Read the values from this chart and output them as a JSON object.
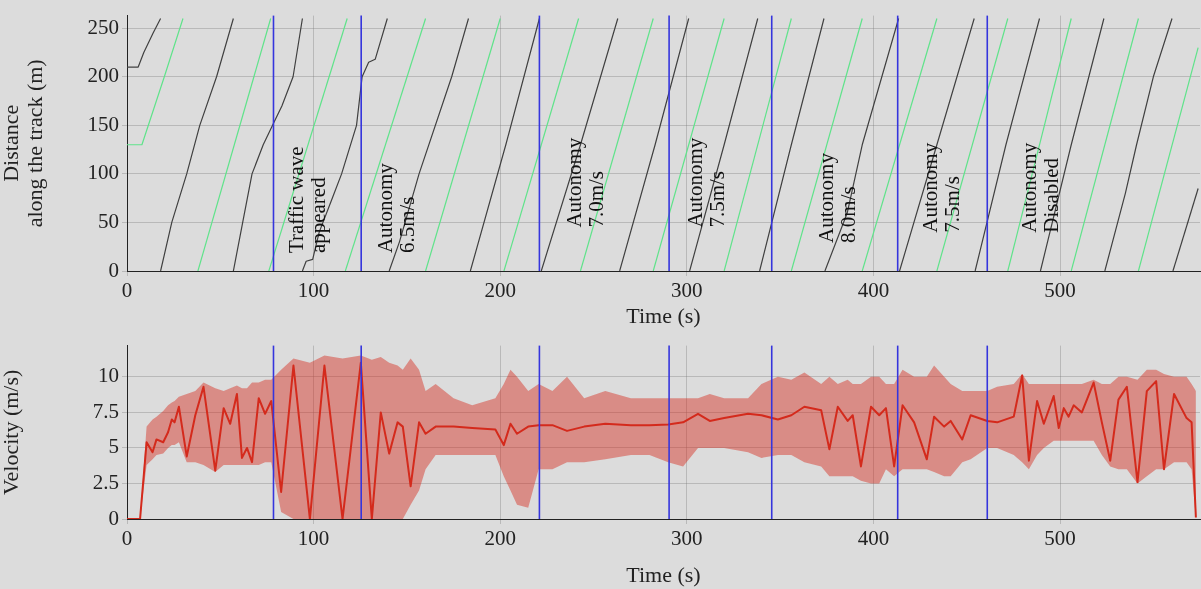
{
  "chart_data": [
    {
      "type": "line",
      "xlabel": "Time (s)",
      "ylabel": "Distance\nalong the track (m)",
      "xlim": [
        0,
        575
      ],
      "ylim": [
        0,
        263
      ],
      "xticks": [
        0,
        100,
        200,
        300,
        400,
        500
      ],
      "yticks": [
        0,
        50,
        100,
        150,
        200,
        250
      ],
      "grid": true,
      "legend": false,
      "marker": "none",
      "line_style": "solid",
      "series": [
        {
          "color": "#5fe38a",
          "x": [
            0,
            8,
            20,
            30
          ],
          "values": [
            130,
            130,
            200,
            260
          ]
        },
        {
          "color": "#5fe38a",
          "x": [
            38,
            77
          ],
          "values": [
            0,
            260
          ]
        },
        {
          "color": "#5fe38a",
          "x": [
            76,
            118
          ],
          "values": [
            0,
            260
          ]
        },
        {
          "color": "#5fe38a",
          "x": [
            117,
            160
          ],
          "values": [
            0,
            260
          ]
        },
        {
          "color": "#5fe38a",
          "x": [
            160,
            200
          ],
          "values": [
            0,
            260
          ]
        },
        {
          "color": "#5fe38a",
          "x": [
            202,
            242
          ],
          "values": [
            0,
            260
          ]
        },
        {
          "color": "#5fe38a",
          "x": [
            243,
            282
          ],
          "values": [
            0,
            260
          ]
        },
        {
          "color": "#5fe38a",
          "x": [
            282,
            320
          ],
          "values": [
            0,
            260
          ]
        },
        {
          "color": "#5fe38a",
          "x": [
            320,
            356
          ],
          "values": [
            0,
            260
          ]
        },
        {
          "color": "#5fe38a",
          "x": [
            356,
            394
          ],
          "values": [
            0,
            260
          ]
        },
        {
          "color": "#5fe38a",
          "x": [
            394,
            434
          ],
          "values": [
            0,
            260
          ]
        },
        {
          "color": "#5fe38a",
          "x": [
            434,
            472
          ],
          "values": [
            0,
            260
          ]
        },
        {
          "color": "#5fe38a",
          "x": [
            472,
            506
          ],
          "values": [
            0,
            260
          ]
        },
        {
          "color": "#5fe38a",
          "x": [
            506,
            542
          ],
          "values": [
            0,
            260
          ]
        },
        {
          "color": "#5fe38a",
          "x": [
            542,
            574
          ],
          "values": [
            0,
            230
          ]
        },
        {
          "color": "#404040",
          "x": [
            0,
            6,
            9,
            14,
            18
          ],
          "values": [
            210,
            210,
            225,
            245,
            260
          ]
        },
        {
          "color": "#404040",
          "x": [
            18,
            24,
            32,
            39,
            48,
            57
          ],
          "values": [
            0,
            50,
            100,
            150,
            200,
            260
          ]
        },
        {
          "color": "#404040",
          "x": [
            57,
            62,
            67,
            73,
            78,
            83,
            89,
            94
          ],
          "values": [
            0,
            50,
            100,
            130,
            150,
            170,
            200,
            260
          ]
        },
        {
          "color": "#404040",
          "x": [
            94,
            96,
            99.5,
            103,
            110,
            115,
            123,
            126,
            129.5,
            133,
            139.5
          ],
          "values": [
            0,
            10,
            12,
            40,
            75,
            100,
            150,
            200,
            215,
            218,
            260
          ]
        },
        {
          "color": "#404040",
          "x": [
            140.5,
            146,
            156.5,
            174,
            183
          ],
          "values": [
            0,
            30,
            100,
            200,
            260
          ]
        },
        {
          "color": "#404040",
          "x": [
            184,
            203,
            221
          ],
          "values": [
            0,
            130,
            260
          ]
        },
        {
          "color": "#404040",
          "x": [
            222,
            243,
            263
          ],
          "values": [
            0,
            130,
            260
          ]
        },
        {
          "color": "#404040",
          "x": [
            264,
            283,
            301
          ],
          "values": [
            0,
            130,
            260
          ]
        },
        {
          "color": "#404040",
          "x": [
            301.5,
            320,
            338
          ],
          "values": [
            0,
            130,
            260
          ]
        },
        {
          "color": "#404040",
          "x": [
            339,
            356,
            373.5
          ],
          "values": [
            0,
            130,
            260
          ]
        },
        {
          "color": "#404040",
          "x": [
            374,
            386,
            394,
            413.5
          ],
          "values": [
            0,
            60,
            130,
            260
          ]
        },
        {
          "color": "#404040",
          "x": [
            414,
            434,
            454
          ],
          "values": [
            0,
            130,
            260
          ]
        },
        {
          "color": "#404040",
          "x": [
            454.5,
            471,
            489
          ],
          "values": [
            0,
            130,
            260
          ]
        },
        {
          "color": "#404040",
          "x": [
            489.5,
            506,
            523.5
          ],
          "values": [
            0,
            130,
            260
          ]
        },
        {
          "color": "#404040",
          "x": [
            524,
            535,
            541,
            550,
            560
          ],
          "values": [
            0,
            80,
            130,
            200,
            260
          ]
        },
        {
          "color": "#404040",
          "x": [
            560.5,
            574
          ],
          "values": [
            0,
            85
          ]
        }
      ],
      "ref_lines": [
        {
          "axis": "x",
          "value": 78.5,
          "color": "#3535dd"
        },
        {
          "axis": "x",
          "value": 125.5,
          "color": "#3535dd"
        },
        {
          "axis": "x",
          "value": 221,
          "color": "#3535dd"
        },
        {
          "axis": "x",
          "value": 290.5,
          "color": "#3535dd"
        },
        {
          "axis": "x",
          "value": 345.5,
          "color": "#3535dd"
        },
        {
          "axis": "x",
          "value": 413,
          "color": "#3535dd"
        },
        {
          "axis": "x",
          "value": 461,
          "color": "#3535dd"
        }
      ],
      "annotations": [
        "Traffic wave\nappeared",
        "Autonomy\n6.5m/s",
        "Autonomy\n7.0m/s",
        "Autonomy\n7.5m/s",
        "Autonomy\n8.0m/s",
        "Autonomy\n7.5m/s",
        "Autonomy\nDisabled"
      ]
    },
    {
      "type": "line",
      "xlabel": "Time (s)",
      "ylabel": "Velocity (m/s)",
      "xlim": [
        0,
        575
      ],
      "ylim": [
        0,
        12.2
      ],
      "xticks": [
        0,
        100,
        200,
        300,
        400,
        500
      ],
      "yticks": [
        0,
        2.5,
        5,
        7.5,
        10
      ],
      "grid": true,
      "legend": false,
      "marker": "none",
      "line_style": "solid",
      "series": [
        {
          "color": "#d42a1c",
          "x": [
            0,
            7,
            10.5,
            13.7,
            15.8,
            19.4,
            22,
            24,
            25.5,
            27.8,
            32,
            36.6,
            41,
            47.3,
            51.8,
            55.3,
            58.9,
            61.6,
            64.3,
            67,
            70.6,
            74,
            77.3,
            82.6,
            89.2,
            98,
            105.8,
            115.5,
            125.3,
            131.2,
            136,
            140.5,
            145,
            147.8,
            152,
            156.5,
            160,
            165.4,
            175,
            185,
            197.4,
            201.9,
            205.5,
            209,
            215,
            220.6,
            228,
            235.8,
            245,
            256.3,
            270,
            280,
            290,
            298,
            306,
            312.3,
            320,
            332.8,
            340,
            348.8,
            356,
            363,
            372,
            376.4,
            380.9,
            386.2,
            388.9,
            393.3,
            398.7,
            403.1,
            406.7,
            411.1,
            415.6,
            421.8,
            428.6,
            432.5,
            437.9,
            441.4,
            447.6,
            452.1,
            461,
            466.3,
            475.2,
            479.7,
            483.3,
            487.7,
            491.3,
            496.6,
            499.3,
            502,
            504.6,
            507.3,
            511.7,
            518,
            522.4,
            526.9,
            531.3,
            535.8,
            541.5,
            546.5,
            551.5,
            555.7,
            561.1,
            567.8,
            570.5,
            572.8
          ],
          "values": [
            0,
            0,
            5.4,
            4.7,
            5.6,
            5.4,
            6.1,
            7.0,
            6.8,
            7.9,
            4.4,
            7.3,
            9.3,
            3.4,
            7.8,
            6.7,
            8.8,
            4.3,
            5.0,
            4.0,
            8.5,
            7.4,
            8.3,
            1.9,
            10.8,
            0,
            10.8,
            0,
            11.0,
            0,
            7.5,
            4.6,
            6.8,
            6.5,
            2.3,
            6.8,
            6.0,
            6.5,
            6.5,
            6.4,
            6.3,
            5.2,
            6.7,
            6.0,
            6.5,
            6.6,
            6.6,
            6.2,
            6.5,
            6.7,
            6.6,
            6.6,
            6.65,
            6.8,
            7.4,
            6.9,
            7.1,
            7.4,
            7.3,
            7.0,
            7.3,
            7.9,
            7.65,
            4.9,
            7.9,
            6.9,
            7.3,
            3.7,
            7.9,
            7.3,
            7.8,
            3.7,
            8.0,
            6.8,
            4.2,
            7.2,
            6.5,
            6.9,
            5.6,
            7.3,
            6.9,
            6.8,
            7.2,
            10.1,
            4.1,
            8.3,
            6.7,
            8.65,
            6.4,
            7.8,
            7.2,
            8.0,
            7.5,
            9.6,
            6.8,
            4.1,
            8.4,
            9.3,
            2.6,
            9.0,
            9.7,
            3.5,
            8.8,
            7.1,
            6.8,
            0.1
          ],
          "lower": [
            0,
            0,
            3.8,
            4.2,
            4.5,
            4.6,
            5.0,
            5.2,
            5.2,
            5.4,
            4.0,
            4.0,
            3.8,
            3.3,
            3.8,
            3.8,
            3.8,
            3.8,
            3.8,
            3.8,
            3.8,
            4.0,
            4.0,
            0.5,
            0,
            0,
            0,
            0,
            0,
            0,
            0,
            0,
            0,
            0,
            1,
            2,
            3.5,
            4.5,
            4.5,
            4.5,
            4.5,
            3.0,
            2.0,
            1.0,
            0.8,
            3.5,
            3.5,
            4.0,
            4.0,
            4.2,
            4.5,
            4.5,
            4.0,
            3.7,
            5.0,
            5.0,
            5.0,
            4.7,
            4.3,
            4.5,
            4.5,
            4.0,
            3.7,
            3.0,
            3.0,
            3.0,
            3.0,
            2.7,
            2.5,
            2.5,
            3.5,
            3.0,
            3.5,
            3.5,
            3.5,
            3.3,
            3.0,
            3.0,
            4.0,
            4.2,
            5.0,
            5.0,
            4.5,
            4.0,
            3.5,
            4.5,
            5.0,
            5.5,
            5.5,
            5.5,
            5.5,
            5.5,
            5.5,
            5.5,
            4.5,
            3.7,
            3.5,
            3.5,
            2.5,
            3.0,
            3.5,
            3.5,
            4.0,
            4.0,
            3.5,
            0
          ],
          "upper": [
            0,
            0,
            6.5,
            7.0,
            7.2,
            7.6,
            8.0,
            8.2,
            8.3,
            8.6,
            8.8,
            9.0,
            9.6,
            9.2,
            9.0,
            9.2,
            9.4,
            9.2,
            9.2,
            9.6,
            9.6,
            9.8,
            9.8,
            10.5,
            11.3,
            11.0,
            11.5,
            11.3,
            11.5,
            11.2,
            11.4,
            11.0,
            10.8,
            10.5,
            11.3,
            10.5,
            9.0,
            9.5,
            8.5,
            8.0,
            8.5,
            9.5,
            10.5,
            10.0,
            9.0,
            9.5,
            9.0,
            10.0,
            8.5,
            9.0,
            8.5,
            8.5,
            8.5,
            8.5,
            8.5,
            8.8,
            8.5,
            8.5,
            9.5,
            10.0,
            9.8,
            10.3,
            9.5,
            10.0,
            9.5,
            9.8,
            9.5,
            9.5,
            10.0,
            10.0,
            9.5,
            9.5,
            10.5,
            10.0,
            10.0,
            10.8,
            10.0,
            9.5,
            9.0,
            9.0,
            9.0,
            9.3,
            9.5,
            10.2,
            9.5,
            9.5,
            9.5,
            9.5,
            9.5,
            9.5,
            9.5,
            9.5,
            9.5,
            9.8,
            9.5,
            9.5,
            10.0,
            10.0,
            9.8,
            10.5,
            10.5,
            10.2,
            10.0,
            10.0,
            9.5,
            9
          ]
        }
      ],
      "ref_lines": [
        {
          "axis": "x",
          "value": 78.5,
          "color": "#3535dd"
        },
        {
          "axis": "x",
          "value": 125.5,
          "color": "#3535dd"
        },
        {
          "axis": "x",
          "value": 221,
          "color": "#3535dd"
        },
        {
          "axis": "x",
          "value": 290.5,
          "color": "#3535dd"
        },
        {
          "axis": "x",
          "value": 345.5,
          "color": "#3535dd"
        },
        {
          "axis": "x",
          "value": 413,
          "color": "#3535dd"
        },
        {
          "axis": "x",
          "value": 461,
          "color": "#3535dd"
        }
      ]
    }
  ]
}
